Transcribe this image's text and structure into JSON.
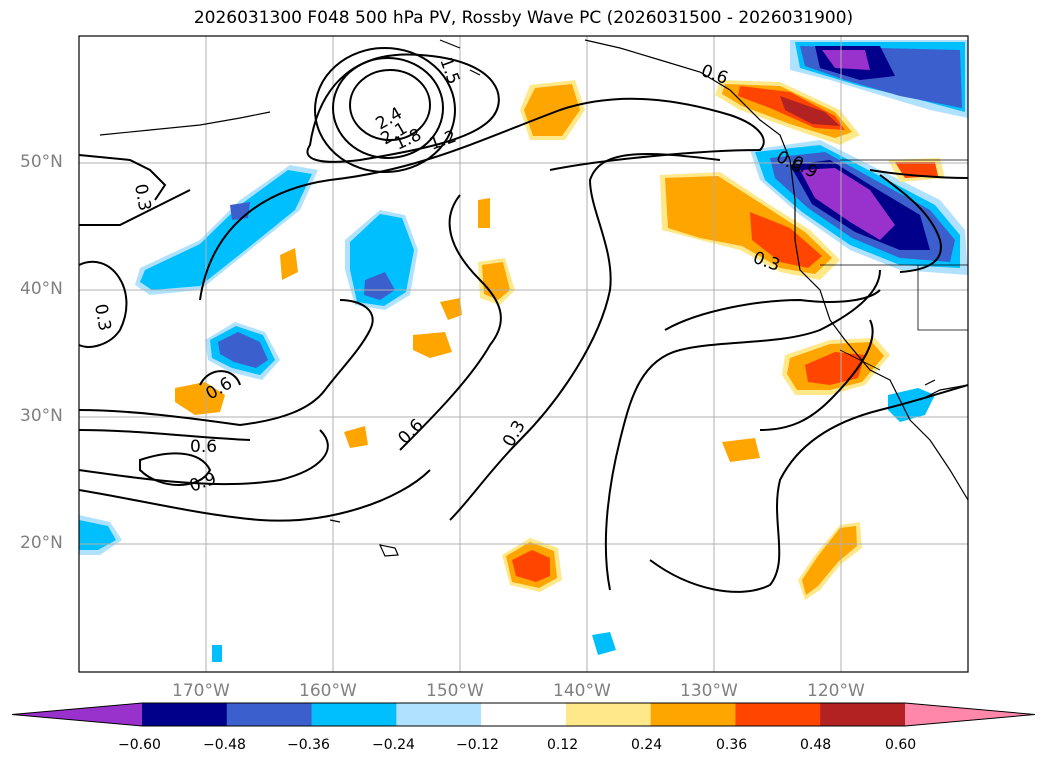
{
  "title": "2026031300 F048 500 hPa PV, Rossby Wave PC (2026031500 - 2026031900)",
  "lat_labels": [
    "50°N",
    "40°N",
    "30°N",
    "20°N"
  ],
  "lon_labels": [
    "170°W",
    "160°W",
    "150°W",
    "140°W",
    "130°W",
    "120°W"
  ],
  "contour_labels": [
    "1.5",
    "2.4",
    "2.1",
    "1.8",
    "1.2",
    "0.6",
    "0.3",
    "0.3",
    "0.6",
    "0.6",
    "0.9",
    "0.6",
    "0.3",
    "0.3",
    "0.6",
    "0.9"
  ],
  "colorbar": {
    "ticks": [
      "−0.60",
      "−0.48",
      "−0.36",
      "−0.24",
      "−0.12",
      "0.12",
      "0.24",
      "0.36",
      "0.48",
      "0.60"
    ],
    "colors": [
      "#9932cc",
      "#00008b",
      "#3b5fcd",
      "#00bfff",
      "#b0e2ff",
      "#ffffff",
      "#ffe88a",
      "#ffa500",
      "#ff4500",
      "#b22222",
      "#ff88aa"
    ]
  },
  "colors": {
    "land": "#ffffff",
    "coast": "#000000",
    "grid": "#b0b0b0"
  }
}
